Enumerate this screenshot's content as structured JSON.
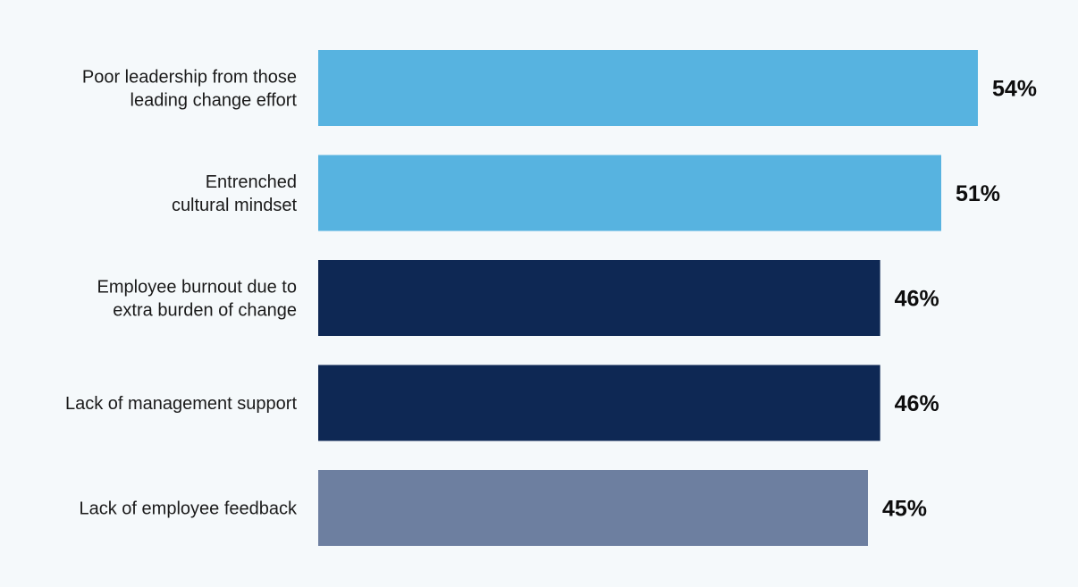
{
  "chart_data": {
    "type": "bar",
    "orientation": "horizontal",
    "categories": [
      [
        "Poor leadership from those",
        "leading change effort"
      ],
      [
        "Entrenched",
        "cultural mindset"
      ],
      [
        "Employee burnout due to",
        "extra burden of change"
      ],
      [
        "Lack of management support"
      ],
      [
        "Lack of employee feedback"
      ]
    ],
    "values": [
      54,
      51,
      46,
      46,
      45
    ],
    "value_labels": [
      "54%",
      "51%",
      "46%",
      "46%",
      "45%"
    ],
    "bar_colors": [
      "#57b3e0",
      "#57b3e0",
      "#0e2854",
      "#0e2854",
      "#6d7fa0"
    ],
    "unit": "%",
    "title": "",
    "xlabel": "",
    "ylabel": "",
    "xlim": [
      0,
      54
    ],
    "grid": false,
    "legend": "none"
  },
  "colors": {
    "background": "#f5f9fb",
    "label_text": "#1a1a1a",
    "value_text": "#0d0d0d"
  }
}
